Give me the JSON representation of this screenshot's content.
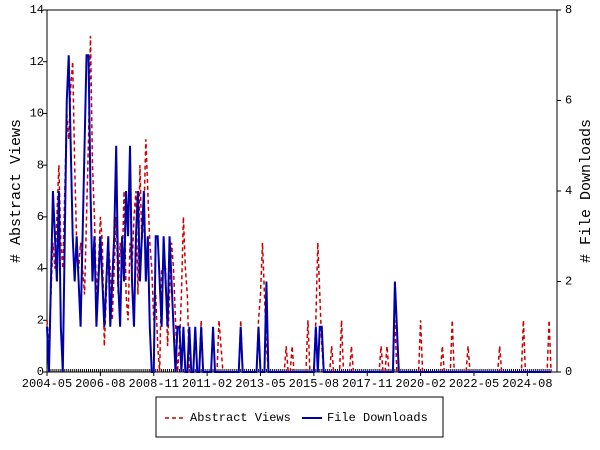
{
  "chart_data": {
    "type": "line",
    "ylabel": "# Abstract Views",
    "y2label": "# File Downloads",
    "ylim": [
      0,
      14
    ],
    "yticks": [
      0,
      2,
      4,
      6,
      8,
      10,
      12,
      14
    ],
    "y2lim": [
      0,
      8
    ],
    "y2ticks": [
      0,
      2,
      4,
      6,
      8
    ],
    "legend": "bottom",
    "categories": [
      "2004-05",
      null,
      null,
      null,
      null,
      null,
      null,
      null,
      null,
      null,
      null,
      null,
      null,
      null,
      null,
      null,
      null,
      null,
      null,
      null,
      null,
      null,
      null,
      null,
      null,
      null,
      null,
      "2006-08",
      null,
      null,
      null,
      null,
      null,
      null,
      null,
      null,
      null,
      null,
      null,
      null,
      null,
      null,
      null,
      null,
      null,
      null,
      null,
      null,
      null,
      null,
      null,
      null,
      null,
      null,
      "2008-11",
      null,
      null,
      null,
      null,
      null,
      null,
      null,
      null,
      null,
      null,
      null,
      null,
      null,
      null,
      null,
      null,
      null,
      null,
      null,
      null,
      null,
      null,
      null,
      null,
      null,
      null,
      "2011-02",
      null,
      null,
      null,
      null,
      null,
      null,
      null,
      null,
      null,
      null,
      null,
      null,
      null,
      null,
      null,
      null,
      null,
      null,
      null,
      null,
      null,
      null,
      null,
      null,
      null,
      null,
      "2013-05",
      null,
      null,
      null,
      null,
      null,
      null,
      null,
      null,
      null,
      null,
      null,
      null,
      null,
      null,
      null,
      null,
      null,
      null,
      null,
      null,
      null,
      null,
      null,
      null,
      null,
      null,
      "2015-08",
      null,
      null,
      null,
      null,
      null,
      null,
      null,
      null,
      null,
      null,
      null,
      null,
      null,
      null,
      null,
      null,
      null,
      null,
      null,
      null,
      null,
      null,
      null,
      null,
      null,
      null,
      "2017-11",
      null,
      null,
      null,
      null,
      null,
      null,
      null,
      null,
      null,
      null,
      null,
      null,
      null,
      null,
      null,
      null,
      null,
      null,
      null,
      null,
      null,
      null,
      null,
      null,
      null,
      null,
      "2020-02",
      null,
      null,
      null,
      null,
      null,
      null,
      null,
      null,
      null,
      null,
      null,
      null,
      null,
      null,
      null,
      null,
      null,
      null,
      null,
      null,
      null,
      null,
      null,
      null,
      null,
      null,
      "2022-05",
      null,
      null,
      null,
      null,
      null,
      null,
      null,
      null,
      null,
      null,
      null,
      null,
      null,
      null,
      null,
      null,
      null,
      null,
      null,
      null,
      null,
      null,
      null,
      null,
      null,
      null,
      "2024-08",
      null,
      null,
      null,
      null,
      null,
      null,
      null,
      null,
      null,
      null,
      null,
      null
    ],
    "series": [
      {
        "name": "Abstract Views",
        "color": "#cc0000",
        "dash": true,
        "values": [
          2,
          1,
          3,
          5,
          4,
          6,
          8,
          5,
          4,
          7,
          10,
          9,
          11,
          12,
          8,
          5,
          4,
          5,
          4,
          3,
          6,
          9,
          13,
          8,
          6,
          3,
          4,
          6,
          5,
          1,
          3,
          5,
          4,
          2,
          4,
          6,
          3,
          5,
          4,
          7,
          3,
          2,
          5,
          4,
          6,
          7,
          3,
          8,
          5,
          6,
          9,
          7,
          5,
          4,
          2,
          3,
          1,
          0,
          4,
          4,
          4,
          1,
          3,
          5,
          4,
          2,
          0,
          1,
          3,
          6,
          4,
          3,
          0,
          0,
          0,
          0,
          0,
          0,
          2,
          0,
          0,
          0,
          0,
          0,
          0,
          0,
          0,
          2,
          1,
          0,
          0,
          0,
          0,
          0,
          0,
          0,
          0,
          0,
          2,
          0,
          0,
          0,
          0,
          0,
          0,
          0,
          0,
          2,
          3,
          5,
          3,
          1,
          0,
          0,
          0,
          0,
          0,
          0,
          0,
          0,
          0,
          1,
          0,
          0,
          1,
          0,
          0,
          0,
          0,
          0,
          0,
          0,
          2,
          0,
          0,
          0,
          2,
          5,
          3,
          1,
          0,
          0,
          0,
          0,
          1,
          0,
          0,
          0,
          0,
          2,
          0,
          0,
          0,
          0,
          1,
          0,
          0,
          0,
          0,
          0,
          0,
          0,
          0,
          0,
          0,
          0,
          0,
          0,
          0,
          1,
          0,
          0,
          1,
          0,
          0,
          0,
          2,
          0,
          0,
          0,
          0,
          0,
          0,
          0,
          0,
          0,
          0,
          0,
          0,
          2,
          0,
          0,
          0,
          0,
          0,
          0,
          0,
          0,
          0,
          0,
          1,
          0,
          0,
          0,
          0,
          2,
          0,
          0,
          0,
          0,
          0,
          0,
          0,
          1,
          0,
          0,
          0,
          0,
          0,
          0,
          0,
          0,
          0,
          0,
          0,
          0,
          0,
          0,
          0,
          1,
          0,
          0,
          0,
          0,
          0,
          0,
          0,
          0,
          0,
          0,
          0,
          2,
          0,
          0,
          0,
          0,
          0,
          0,
          0,
          0,
          0,
          0,
          0,
          0,
          2,
          0
        ]
      },
      {
        "name": "File Downloads",
        "color": "#0000aa",
        "axis": "y2",
        "values": [
          1,
          0,
          2,
          4,
          3,
          2,
          4,
          1,
          0,
          3,
          6,
          7,
          5,
          3,
          2,
          3,
          2,
          1,
          3,
          5,
          7,
          7,
          4,
          2,
          3,
          1,
          2,
          3,
          2,
          1,
          2,
          3,
          1,
          2,
          3,
          5,
          2,
          1,
          3,
          2,
          4,
          3,
          5,
          2,
          1,
          3,
          4,
          2,
          3,
          4,
          2,
          3,
          1,
          0,
          0,
          3,
          3,
          2,
          1,
          3,
          2,
          1,
          3,
          2,
          1,
          0,
          1,
          1,
          0,
          1,
          0,
          0,
          1,
          0,
          0,
          1,
          0,
          0,
          1,
          0,
          0,
          0,
          0,
          0,
          1,
          0,
          0,
          0,
          0,
          0,
          0,
          0,
          0,
          0,
          0,
          0,
          0,
          0,
          1,
          0,
          0,
          0,
          0,
          0,
          0,
          0,
          0,
          1,
          0,
          0,
          0,
          2,
          0,
          0,
          0,
          0,
          0,
          0,
          0,
          0,
          0,
          0,
          0,
          0,
          0,
          0,
          0,
          0,
          0,
          0,
          0,
          0,
          0,
          0,
          0,
          0,
          1,
          0,
          1,
          1,
          0,
          0,
          0,
          0,
          0,
          0,
          0,
          0,
          0,
          0,
          0,
          0,
          0,
          0,
          0,
          0,
          0,
          0,
          0,
          0,
          0,
          0,
          0,
          0,
          0,
          0,
          0,
          0,
          0,
          0,
          0,
          0,
          0,
          0,
          0,
          0,
          2,
          1,
          0,
          0,
          0,
          0,
          0,
          0,
          0,
          0,
          0,
          0,
          0,
          0,
          0,
          0,
          0,
          0,
          0,
          0,
          0,
          0,
          0,
          0,
          0,
          0,
          0,
          0,
          0,
          0,
          0,
          0,
          0,
          0,
          0,
          0,
          0,
          0,
          0,
          0,
          0,
          0,
          0,
          0,
          0,
          0,
          0,
          0,
          0,
          0,
          0,
          0,
          0,
          0,
          0,
          0,
          0,
          0,
          0,
          0,
          0,
          0,
          0,
          0,
          0,
          0,
          0,
          0,
          0,
          0,
          0,
          0,
          0,
          0,
          0,
          0,
          0,
          0,
          0,
          0
        ]
      }
    ]
  }
}
